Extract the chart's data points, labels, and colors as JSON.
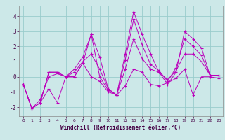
{
  "xlabel": "Windchill (Refroidissement éolien,°C)",
  "background_color": "#cce8e8",
  "grid_color": "#99cccc",
  "line_color": "#bb00bb",
  "xlim": [
    -0.5,
    23.5
  ],
  "ylim": [
    -2.6,
    4.7
  ],
  "yticks": [
    -2,
    -1,
    0,
    1,
    2,
    3,
    4
  ],
  "xticks": [
    0,
    1,
    2,
    3,
    4,
    5,
    6,
    7,
    8,
    9,
    10,
    11,
    12,
    13,
    14,
    15,
    16,
    17,
    18,
    19,
    20,
    21,
    22,
    23
  ],
  "series": [
    [
      -0.5,
      -2.1,
      -1.7,
      0.3,
      0.3,
      0.0,
      0.0,
      0.9,
      2.8,
      0.0,
      -0.9,
      -1.2,
      1.5,
      4.3,
      2.8,
      1.5,
      0.3,
      -0.5,
      0.3,
      3.0,
      2.5,
      1.9,
      0.1,
      0.1
    ],
    [
      -0.5,
      -2.1,
      -1.7,
      0.3,
      0.3,
      0.0,
      0.5,
      1.3,
      2.8,
      1.3,
      -0.8,
      -1.2,
      1.1,
      3.8,
      2.1,
      0.8,
      0.4,
      -0.3,
      0.6,
      2.5,
      2.0,
      1.4,
      0.1,
      0.1
    ],
    [
      -0.5,
      -2.1,
      -1.5,
      0.0,
      0.2,
      0.0,
      0.3,
      1.0,
      1.5,
      0.5,
      -0.8,
      -1.2,
      0.5,
      2.5,
      1.2,
      0.5,
      0.3,
      -0.2,
      0.4,
      1.5,
      1.5,
      1.0,
      0.1,
      0.1
    ],
    [
      -0.5,
      -2.1,
      -1.7,
      -0.8,
      -1.7,
      0.0,
      0.0,
      0.9,
      0.0,
      -0.3,
      -1.0,
      -1.2,
      -0.6,
      0.5,
      0.3,
      -0.5,
      -0.6,
      -0.4,
      -0.1,
      0.5,
      -1.2,
      0.0,
      0.0,
      -0.1
    ]
  ]
}
